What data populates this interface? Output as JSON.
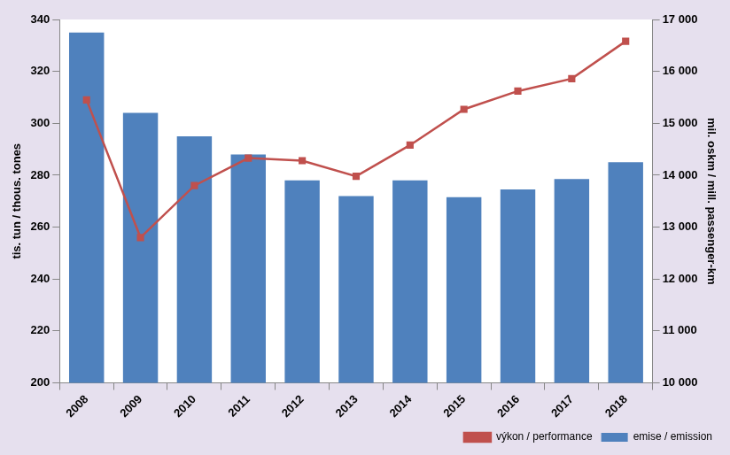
{
  "chart_data": {
    "type": "bar",
    "categories": [
      "2008",
      "2009",
      "2010",
      "2011",
      "2012",
      "2013",
      "2014",
      "2015",
      "2016",
      "2017",
      "2018"
    ],
    "series": [
      {
        "name": "emise / emission",
        "type": "bar",
        "color": "#4f81bd",
        "values": [
          335,
          304,
          295,
          288,
          278,
          272,
          278,
          271.5,
          274.5,
          278.5,
          285
        ]
      },
      {
        "name": "výkon / performance",
        "type": "line",
        "color": "#c0504d",
        "marker": "square",
        "axis": "y2",
        "values": [
          15450,
          12800,
          13800,
          14330,
          14280,
          13980,
          14580,
          15270,
          15620,
          15860,
          16580
        ]
      }
    ],
    "ylabel": "tis. tun / thous. tones",
    "y2label": "mil. oskm / mill. passenger-km",
    "ylim": [
      200,
      340
    ],
    "yticks": [
      200,
      220,
      240,
      260,
      280,
      300,
      320,
      340
    ],
    "y2lim": [
      10000,
      17000
    ],
    "y2ticks": [
      {
        "value": 10000,
        "label": "10 000"
      },
      {
        "value": 11000,
        "label": "11 000"
      },
      {
        "value": 12000,
        "label": "12 000"
      },
      {
        "value": 13000,
        "label": "13 000"
      },
      {
        "value": 14000,
        "label": "14 000"
      },
      {
        "value": 15000,
        "label": "15 000"
      },
      {
        "value": 16000,
        "label": "16 000"
      },
      {
        "value": 17000,
        "label": "17 000"
      }
    ],
    "grid": false,
    "legend": "bottom-right"
  }
}
